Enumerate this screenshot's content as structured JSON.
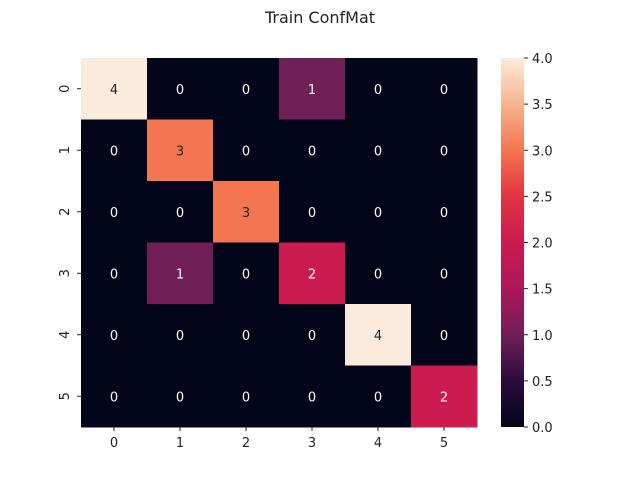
{
  "chart_data": {
    "type": "heatmap",
    "title": "Train ConfMat",
    "xlabel": "",
    "ylabel": "",
    "x_ticks": [
      "0",
      "1",
      "2",
      "3",
      "4",
      "5"
    ],
    "y_ticks": [
      "0",
      "1",
      "2",
      "3",
      "4",
      "5"
    ],
    "matrix": [
      [
        4,
        0,
        0,
        1,
        0,
        0
      ],
      [
        0,
        3,
        0,
        0,
        0,
        0
      ],
      [
        0,
        0,
        3,
        0,
        0,
        0
      ],
      [
        0,
        1,
        0,
        2,
        0,
        0
      ],
      [
        0,
        0,
        0,
        0,
        4,
        0
      ],
      [
        0,
        0,
        0,
        0,
        0,
        2
      ]
    ],
    "cell_labels": [
      [
        "4",
        "0",
        "0",
        "1",
        "0",
        "0"
      ],
      [
        "0",
        "3",
        "0",
        "0",
        "0",
        "0"
      ],
      [
        "0",
        "0",
        "3",
        "0",
        "0",
        "0"
      ],
      [
        "0",
        "1",
        "0",
        "2",
        "0",
        "0"
      ],
      [
        "0",
        "0",
        "0",
        "0",
        "4",
        "0"
      ],
      [
        "0",
        "0",
        "0",
        "0",
        "0",
        "2"
      ]
    ],
    "value_range": [
      0,
      4
    ],
    "colorbar_ticks": [
      "0.0",
      "0.5",
      "1.0",
      "1.5",
      "2.0",
      "2.5",
      "3.0",
      "3.5",
      "4.0"
    ],
    "colormap": "rocket",
    "colors": {
      "0": "#03051a",
      "1": "#701f57",
      "2": "#cb1b4f",
      "3": "#f37651",
      "4": "#faebdd"
    },
    "grid": false,
    "legend": "colorbar-right"
  }
}
